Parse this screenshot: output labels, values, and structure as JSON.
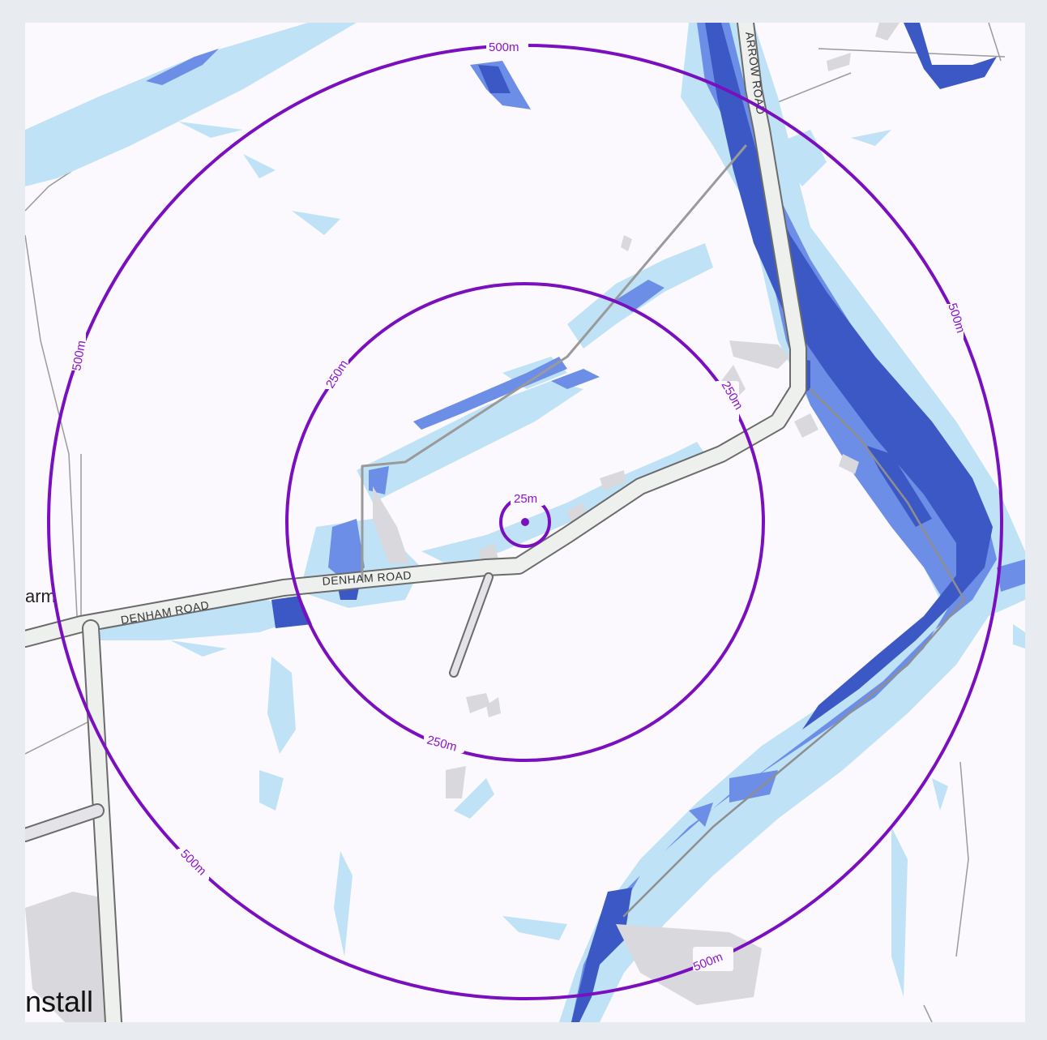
{
  "map": {
    "colors": {
      "background": "#fbf9fd",
      "ring": "#7a0fbf",
      "ring_label": "#8a14c8",
      "flood_light": "#bfe2f6",
      "flood_medium": "#6d8ee6",
      "flood_dark": "#3c58c4",
      "road_fill": "#eef0ee",
      "road_edge": "#6b6b6b",
      "building": "#d9d9dd"
    },
    "rings": [
      {
        "label": "25m"
      },
      {
        "label": "250m"
      },
      {
        "label": "500m"
      }
    ],
    "ring_labels": {
      "r25": "25m",
      "r250_top": "250m",
      "r250_right": "250m",
      "r250_bottom": "250m",
      "r500_top": "500m",
      "r500_left": "500m",
      "r500_right": "500m",
      "r500_bottom_left": "500m",
      "r500_bottom_right": "500m"
    },
    "roads": {
      "denham_road_west": "DENHAM ROAD",
      "denham_road_center": "DENHAM ROAD",
      "north_road": "ARROW ROAD"
    },
    "places": {
      "farm_fragment": "arm",
      "village_fragment": "nstall"
    }
  }
}
